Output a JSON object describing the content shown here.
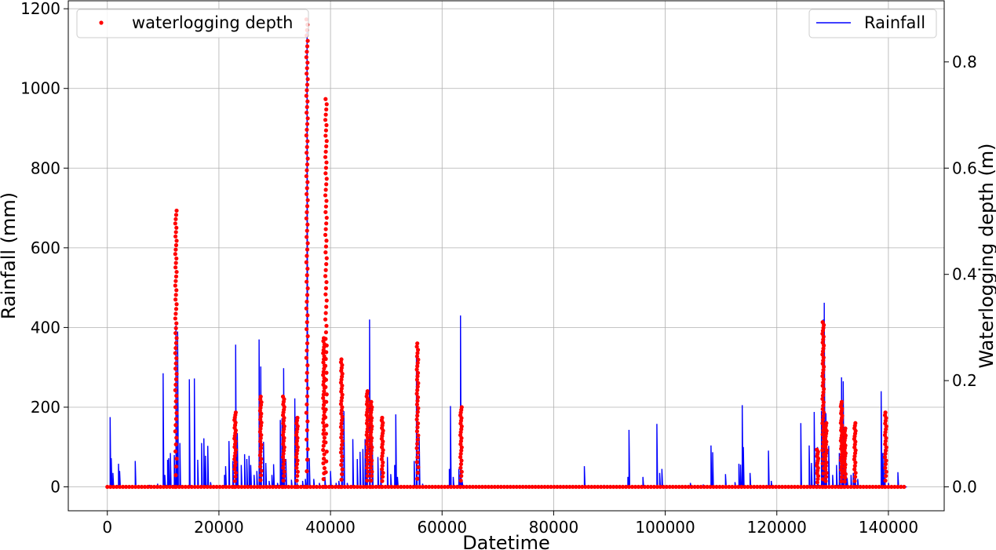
{
  "chart_data": {
    "type": "line",
    "xlabel": "Datetime",
    "ylabel": "Rainfall (mm)",
    "y2label": "Waterlogging depth (m)",
    "xlim": [
      -7000,
      150000
    ],
    "ylim": [
      -60,
      1220
    ],
    "y2lim": [
      -0.045,
      0.915
    ],
    "xticks": [
      0,
      20000,
      40000,
      60000,
      80000,
      100000,
      120000,
      140000
    ],
    "xtick_labels": [
      "0",
      "20000",
      "40000",
      "60000",
      "80000",
      "100000",
      "120000",
      "140000"
    ],
    "yticks": [
      0,
      200,
      400,
      600,
      800,
      1000,
      1200
    ],
    "ytick_labels": [
      "0",
      "200",
      "400",
      "600",
      "800",
      "1000",
      "1200"
    ],
    "y2ticks": [
      0,
      0.2,
      0.4,
      0.6,
      0.8
    ],
    "y2tick_labels": [
      "0.0",
      "0.2",
      "0.4",
      "0.6",
      "0.8"
    ],
    "grid": true,
    "legends": [
      {
        "label": "waterlogging depth",
        "position": "top-left"
      },
      {
        "label": "Rainfall",
        "position": "top-right"
      }
    ],
    "colors": {
      "rainfall": "#0000ff",
      "depth": "#ff0000"
    },
    "series": [
      {
        "name": "Rainfall",
        "axis": "left",
        "style": "line",
        "spikes": [
          [
            500,
            175
          ],
          [
            700,
            72
          ],
          [
            1000,
            35
          ],
          [
            2000,
            58
          ],
          [
            2200,
            40
          ],
          [
            5000,
            65
          ],
          [
            7500,
            5
          ],
          [
            9000,
            8
          ],
          [
            10000,
            285
          ],
          [
            10300,
            30
          ],
          [
            10800,
            68
          ],
          [
            11000,
            72
          ],
          [
            11300,
            85
          ],
          [
            12000,
            80
          ],
          [
            12300,
            405
          ],
          [
            12600,
            390
          ],
          [
            13000,
            110
          ],
          [
            14700,
            270
          ],
          [
            15600,
            272
          ],
          [
            16200,
            68
          ],
          [
            16900,
            110
          ],
          [
            17300,
            122
          ],
          [
            17600,
            78
          ],
          [
            18000,
            103
          ],
          [
            18500,
            12
          ],
          [
            21000,
            30
          ],
          [
            21200,
            52
          ],
          [
            21800,
            115
          ],
          [
            22500,
            65
          ],
          [
            23000,
            357
          ],
          [
            23300,
            135
          ],
          [
            24000,
            55
          ],
          [
            24600,
            82
          ],
          [
            25000,
            70
          ],
          [
            25400,
            78
          ],
          [
            25700,
            55
          ],
          [
            26300,
            30
          ],
          [
            26800,
            40
          ],
          [
            27200,
            370
          ],
          [
            27500,
            302
          ],
          [
            28000,
            113
          ],
          [
            28400,
            60
          ],
          [
            29000,
            15
          ],
          [
            29500,
            30
          ],
          [
            29800,
            57
          ],
          [
            30500,
            10
          ],
          [
            31000,
            168
          ],
          [
            31300,
            172
          ],
          [
            31600,
            298
          ],
          [
            32000,
            70
          ],
          [
            33000,
            18
          ],
          [
            33600,
            222
          ],
          [
            34000,
            10
          ],
          [
            35000,
            15
          ],
          [
            35500,
            20
          ],
          [
            35800,
            1148
          ],
          [
            36200,
            72
          ],
          [
            37000,
            20
          ],
          [
            38000,
            10
          ],
          [
            39000,
            25
          ],
          [
            40000,
            40
          ],
          [
            41000,
            10
          ],
          [
            41500,
            15
          ],
          [
            42000,
            250
          ],
          [
            42400,
            190
          ],
          [
            43000,
            10
          ],
          [
            44000,
            120
          ],
          [
            44800,
            70
          ],
          [
            45300,
            88
          ],
          [
            45800,
            95
          ],
          [
            46200,
            120
          ],
          [
            46500,
            130
          ],
          [
            47000,
            420
          ],
          [
            47500,
            110
          ],
          [
            48500,
            75
          ],
          [
            49000,
            45
          ],
          [
            50200,
            75
          ],
          [
            50800,
            32
          ],
          [
            51500,
            55
          ],
          [
            51700,
            182
          ],
          [
            52000,
            25
          ],
          [
            55000,
            65
          ],
          [
            55400,
            325
          ],
          [
            55900,
            125
          ],
          [
            56500,
            8
          ],
          [
            61300,
            45
          ],
          [
            61500,
            203
          ],
          [
            62000,
            25
          ],
          [
            63000,
            45
          ],
          [
            63300,
            430
          ],
          [
            63600,
            15
          ],
          [
            85500,
            52
          ],
          [
            89000,
            5
          ],
          [
            93300,
            25
          ],
          [
            93500,
            143
          ],
          [
            96000,
            25
          ],
          [
            98500,
            158
          ],
          [
            99000,
            35
          ],
          [
            99400,
            45
          ],
          [
            104500,
            10
          ],
          [
            106800,
            6
          ],
          [
            108200,
            104
          ],
          [
            108500,
            87
          ],
          [
            110800,
            32
          ],
          [
            112500,
            12
          ],
          [
            113200,
            58
          ],
          [
            113500,
            56
          ],
          [
            113800,
            205
          ],
          [
            114000,
            100
          ],
          [
            115200,
            35
          ],
          [
            118500,
            91
          ],
          [
            119000,
            15
          ],
          [
            124300,
            160
          ],
          [
            125800,
            104
          ],
          [
            126200,
            60
          ],
          [
            126700,
            188
          ],
          [
            127300,
            100
          ],
          [
            128000,
            190
          ],
          [
            128300,
            420
          ],
          [
            128500,
            462
          ],
          [
            128800,
            185
          ],
          [
            129300,
            103
          ],
          [
            130000,
            30
          ],
          [
            130700,
            55
          ],
          [
            131200,
            85
          ],
          [
            131600,
            275
          ],
          [
            131900,
            265
          ],
          [
            132300,
            110
          ],
          [
            132600,
            22
          ],
          [
            133300,
            30
          ],
          [
            133700,
            35
          ],
          [
            134000,
            160
          ],
          [
            134500,
            20
          ],
          [
            138700,
            240
          ],
          [
            139000,
            85
          ],
          [
            139300,
            95
          ],
          [
            140000,
            10
          ],
          [
            141700,
            37
          ],
          [
            142300,
            5
          ]
        ]
      },
      {
        "name": "waterlogging depth",
        "axis": "right",
        "style": "scatter",
        "clusters": [
          {
            "x": 12300,
            "max": 0.52,
            "n": 52
          },
          {
            "x": 22900,
            "max": 0.14,
            "n": 24
          },
          {
            "x": 27500,
            "max": 0.17,
            "n": 26
          },
          {
            "x": 31600,
            "max": 0.17,
            "n": 28
          },
          {
            "x": 34000,
            "max": 0.13,
            "n": 20
          },
          {
            "x": 35800,
            "max": 0.88,
            "n": 70
          },
          {
            "x": 38800,
            "max": 0.28,
            "n": 40
          },
          {
            "x": 39200,
            "max": 0.73,
            "n": 60
          },
          {
            "x": 42000,
            "max": 0.24,
            "n": 36
          },
          {
            "x": 46600,
            "max": 0.18,
            "n": 30
          },
          {
            "x": 47300,
            "max": 0.16,
            "n": 26
          },
          {
            "x": 49300,
            "max": 0.13,
            "n": 22
          },
          {
            "x": 55600,
            "max": 0.27,
            "n": 36
          },
          {
            "x": 63400,
            "max": 0.15,
            "n": 24
          },
          {
            "x": 127300,
            "max": 0.07,
            "n": 14
          },
          {
            "x": 128300,
            "max": 0.31,
            "n": 46
          },
          {
            "x": 128800,
            "max": 0.12,
            "n": 20
          },
          {
            "x": 131600,
            "max": 0.16,
            "n": 30
          },
          {
            "x": 132200,
            "max": 0.11,
            "n": 20
          },
          {
            "x": 134000,
            "max": 0.12,
            "n": 20
          },
          {
            "x": 139500,
            "max": 0.14,
            "n": 22
          }
        ],
        "baseline": {
          "from": 0,
          "to": 143300,
          "value": 0
        }
      }
    ]
  }
}
